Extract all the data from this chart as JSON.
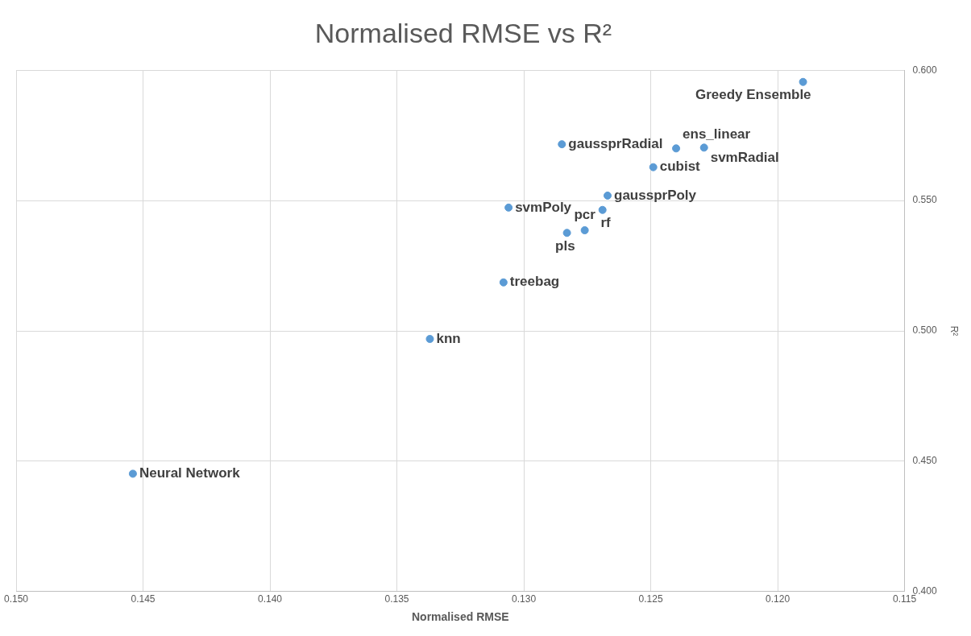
{
  "chart_data": {
    "type": "scatter",
    "title": "Normalised RMSE vs R²",
    "xlabel": "Normalised RMSE",
    "ylabel": "R²",
    "x": [
      0.119,
      0.1285,
      0.124,
      0.1229,
      0.1249,
      0.1267,
      0.1269,
      0.1306,
      0.1276,
      0.1283,
      0.1308,
      0.1337,
      0.1454
    ],
    "series": [
      {
        "color": "#5b9bd5",
        "values": [
          0.5955,
          0.5716,
          0.57,
          0.5703,
          0.5628,
          0.5519,
          0.5464,
          0.5473,
          0.5386,
          0.5376,
          0.5186,
          0.4969,
          0.4452
        ]
      }
    ],
    "annotations": [
      {
        "text": "Greedy Ensemble",
        "x": 0.119,
        "y": 0.5955
      },
      {
        "text": "gaussprRadial",
        "x": 0.1285,
        "y": 0.5716
      },
      {
        "text": "ens_linear",
        "x": 0.124,
        "y": 0.57
      },
      {
        "text": "svmRadial",
        "x": 0.1229,
        "y": 0.5703
      },
      {
        "text": "cubist",
        "x": 0.1249,
        "y": 0.5628
      },
      {
        "text": "gaussprPoly",
        "x": 0.1267,
        "y": 0.5519
      },
      {
        "text": "rf",
        "x": 0.1269,
        "y": 0.5464
      },
      {
        "text": "svmPoly",
        "x": 0.1306,
        "y": 0.5473
      },
      {
        "text": "pcr",
        "x": 0.1276,
        "y": 0.5386
      },
      {
        "text": "pls",
        "x": 0.1283,
        "y": 0.5376
      },
      {
        "text": "treebag",
        "x": 0.1308,
        "y": 0.5186
      },
      {
        "text": "knn",
        "x": 0.1337,
        "y": 0.4969
      },
      {
        "text": "Neural Network",
        "x": 0.1454,
        "y": 0.4452
      }
    ],
    "xlim": [
      0.15,
      0.115
    ],
    "ylim": [
      0.4,
      0.6
    ],
    "xticks": [
      {
        "value": 0.15,
        "label": "0.150"
      },
      {
        "value": 0.145,
        "label": "0.145"
      },
      {
        "value": 0.14,
        "label": "0.140"
      },
      {
        "value": 0.135,
        "label": "0.135"
      },
      {
        "value": 0.13,
        "label": "0.130"
      },
      {
        "value": 0.125,
        "label": "0.125"
      },
      {
        "value": 0.12,
        "label": "0.120"
      },
      {
        "value": 0.115,
        "label": "0.115"
      }
    ],
    "yticks": [
      {
        "value": 0.4,
        "label": "0.400"
      },
      {
        "value": 0.45,
        "label": "0.450"
      },
      {
        "value": 0.5,
        "label": "0.500"
      },
      {
        "value": 0.55,
        "label": "0.550"
      },
      {
        "value": 0.6,
        "label": "0.600"
      }
    ],
    "grid": true,
    "legend": false,
    "marker": "circle"
  }
}
